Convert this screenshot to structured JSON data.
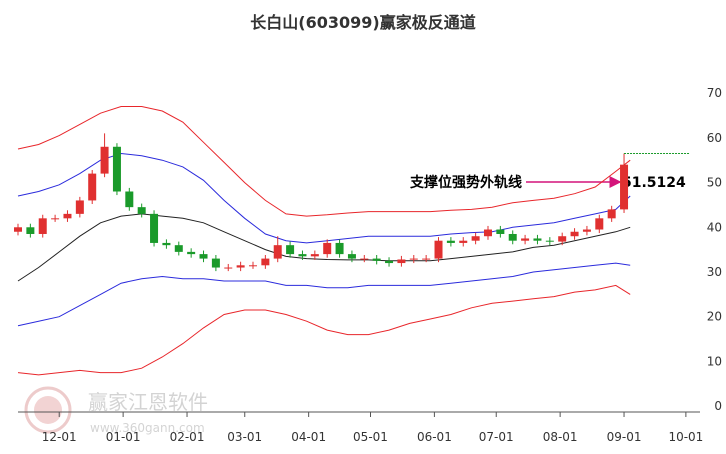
{
  "chart_data": {
    "type": "candlestick",
    "title": "长白山(603099)赢家极反通道",
    "xlim": [
      10,
      336
    ],
    "xticks": [
      {
        "value": 30,
        "label": "12-01"
      },
      {
        "value": 61,
        "label": "01-01"
      },
      {
        "value": 92,
        "label": "02-01"
      },
      {
        "value": 120,
        "label": "03-01"
      },
      {
        "value": 151,
        "label": "04-01"
      },
      {
        "value": 181,
        "label": "05-01"
      },
      {
        "value": 212,
        "label": "06-01"
      },
      {
        "value": 242,
        "label": "07-01"
      },
      {
        "value": 273,
        "label": "08-01"
      },
      {
        "value": 304,
        "label": "09-01"
      },
      {
        "value": 334,
        "label": "10-01"
      }
    ],
    "ylim": [
      -1.3,
      77.4
    ],
    "yticks": [
      0,
      10,
      20,
      30,
      40,
      50,
      60,
      70
    ],
    "x": [
      10,
      20,
      30,
      40,
      50,
      60,
      70,
      80,
      90,
      100,
      110,
      120,
      130,
      140,
      150,
      160,
      170,
      180,
      190,
      200,
      210,
      220,
      230,
      240,
      250,
      260,
      270,
      280,
      290,
      300,
      307
    ],
    "series": [
      {
        "color": "#e8262b",
        "values": [
          57.5,
          58.5,
          60.5,
          63,
          65.5,
          67,
          67,
          66,
          63.5,
          59,
          54.5,
          50,
          46,
          43,
          42.5,
          42.8,
          43.2,
          43.5,
          43.5,
          43.5,
          43.5,
          43.8,
          44,
          44.5,
          45.5,
          46,
          46.5,
          47.5,
          49,
          52.5,
          55
        ]
      },
      {
        "color": "#2b2bdc",
        "values": [
          47,
          48,
          49.5,
          52,
          55,
          56.5,
          56,
          55,
          53.5,
          50.5,
          46,
          42,
          38.5,
          37,
          36.5,
          37,
          37.5,
          38,
          38,
          38,
          38,
          38.5,
          38.8,
          39,
          40,
          40.5,
          41,
          42,
          43,
          44,
          47
        ]
      },
      {
        "color": "#222222",
        "values": [
          28,
          31,
          34.5,
          38,
          41,
          42.5,
          43,
          42.5,
          42,
          41,
          39,
          37,
          35,
          33.5,
          33,
          32.8,
          32.7,
          32.7,
          32.5,
          32.5,
          32.5,
          33,
          33.5,
          34,
          34.5,
          35.5,
          36,
          37,
          38,
          39,
          40
        ]
      },
      {
        "color": "#2b2bdc",
        "values": [
          18,
          19,
          20,
          22.5,
          25,
          27.5,
          28.5,
          29,
          28.5,
          28.5,
          28,
          28,
          28,
          27,
          27,
          26.5,
          26.5,
          27,
          27,
          27,
          27,
          27.5,
          28,
          28.5,
          29,
          30,
          30.5,
          31,
          31.5,
          32,
          31.5
        ]
      },
      {
        "color": "#e8262b",
        "values": [
          7.5,
          7,
          7.5,
          8,
          7.5,
          7.5,
          8.5,
          11,
          14,
          17.5,
          20.5,
          21.5,
          21.5,
          20.5,
          19,
          17,
          16,
          16,
          17,
          18.5,
          19.5,
          20.5,
          22,
          23,
          23.5,
          24,
          24.5,
          25.5,
          26,
          27,
          25
        ]
      }
    ],
    "candles": {
      "up_color": "#e03030",
      "down_color": "#1a9a2a",
      "x": [
        10,
        16,
        22,
        28,
        34,
        40,
        46,
        52,
        58,
        64,
        70,
        76,
        82,
        88,
        94,
        100,
        106,
        112,
        118,
        124,
        130,
        136,
        142,
        148,
        154,
        160,
        166,
        172,
        178,
        184,
        190,
        196,
        202,
        208,
        214,
        220,
        226,
        232,
        238,
        244,
        250,
        256,
        262,
        268,
        274,
        280,
        286,
        292,
        298,
        304
      ],
      "open": [
        39,
        40,
        38.5,
        42,
        42,
        43,
        46,
        52,
        58,
        48,
        44.5,
        43,
        36.5,
        36,
        34.5,
        34,
        33,
        31,
        31,
        31.5,
        31.5,
        33,
        36,
        34,
        33.5,
        34,
        36.5,
        34,
        33,
        33,
        32.5,
        32,
        32.8,
        33,
        33,
        37,
        36.5,
        37,
        38,
        39.5,
        38.5,
        37,
        37.5,
        37,
        36.8,
        38,
        39,
        39.5,
        42,
        44
      ],
      "high": [
        40.8,
        40.8,
        42.8,
        42.8,
        43.8,
        46.8,
        52.8,
        61,
        58.8,
        48.8,
        45.3,
        43.8,
        37.3,
        36.8,
        35.3,
        34.8,
        33.8,
        31.8,
        32.3,
        32.3,
        33.8,
        38,
        36.8,
        34.8,
        34.8,
        37.3,
        37.3,
        34.8,
        33.8,
        33.8,
        33.3,
        33.6,
        33.8,
        33.8,
        37.8,
        37.8,
        37.8,
        38.8,
        40.3,
        40.3,
        39.3,
        38.3,
        38.3,
        37.8,
        38.8,
        39.8,
        40.3,
        42.8,
        44.8,
        56.5
      ],
      "low": [
        38.2,
        37.7,
        37.7,
        41.2,
        41.2,
        42.2,
        45.2,
        51.2,
        47.2,
        43.7,
        42.2,
        35.7,
        35.2,
        33.7,
        33.2,
        32.2,
        30.2,
        30.2,
        30.2,
        30.7,
        30.7,
        32.2,
        33.2,
        32.7,
        32.7,
        33.2,
        33.2,
        32.2,
        32.2,
        31.7,
        31.2,
        31.2,
        32,
        32.2,
        32.2,
        35.7,
        35.7,
        36.2,
        37.2,
        37.7,
        36.2,
        36.2,
        36.2,
        36,
        36,
        37.2,
        38.2,
        38.7,
        41.2,
        43.2
      ],
      "close": [
        40,
        38.5,
        42,
        42,
        43,
        46,
        52,
        58,
        48,
        44.5,
        43,
        36.5,
        36,
        34.5,
        34,
        33,
        31,
        31,
        31.5,
        31.5,
        33,
        36,
        34,
        33.5,
        34,
        36.5,
        34,
        33,
        33,
        32.5,
        32,
        32.8,
        33,
        33,
        37,
        36.5,
        37,
        38,
        39.5,
        38.5,
        37,
        37.5,
        37,
        36.8,
        38,
        39,
        39.5,
        42,
        44,
        54
      ]
    },
    "annotation": "支撑位强势外轨线",
    "annotation_value": 51.5124,
    "watermark": "赢家江恩软件",
    "watermark_url": "www.360gann.com"
  }
}
